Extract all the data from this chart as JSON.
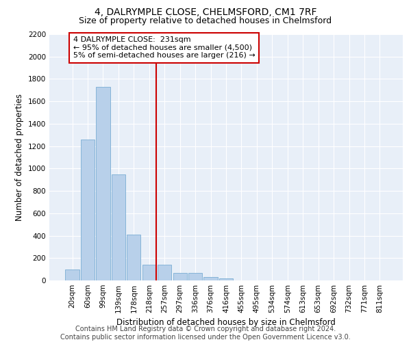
{
  "title": "4, DALRYMPLE CLOSE, CHELMSFORD, CM1 7RF",
  "subtitle": "Size of property relative to detached houses in Chelmsford",
  "xlabel": "Distribution of detached houses by size in Chelmsford",
  "ylabel": "Number of detached properties",
  "categories": [
    "20sqm",
    "60sqm",
    "99sqm",
    "139sqm",
    "178sqm",
    "218sqm",
    "257sqm",
    "297sqm",
    "336sqm",
    "376sqm",
    "416sqm",
    "455sqm",
    "495sqm",
    "534sqm",
    "574sqm",
    "613sqm",
    "653sqm",
    "692sqm",
    "732sqm",
    "771sqm",
    "811sqm"
  ],
  "values": [
    100,
    1260,
    1730,
    950,
    410,
    140,
    140,
    70,
    70,
    30,
    20,
    0,
    0,
    0,
    0,
    0,
    0,
    0,
    0,
    0,
    0
  ],
  "bar_color": "#b8d0ea",
  "bar_edge_color": "#7aadd4",
  "vline_x": 5.45,
  "vline_color": "#cc0000",
  "annotation_box_color": "#cc0000",
  "annotation_text_line1": "4 DALRYMPLE CLOSE:  231sqm",
  "annotation_text_line2": "← 95% of detached houses are smaller (4,500)",
  "annotation_text_line3": "5% of semi-detached houses are larger (216) →",
  "ylim": [
    0,
    2200
  ],
  "yticks": [
    0,
    200,
    400,
    600,
    800,
    1000,
    1200,
    1400,
    1600,
    1800,
    2000,
    2200
  ],
  "footer_line1": "Contains HM Land Registry data © Crown copyright and database right 2024.",
  "footer_line2": "Contains public sector information licensed under the Open Government Licence v3.0.",
  "bg_color": "#e8eff8",
  "grid_color": "#ffffff",
  "title_fontsize": 10,
  "subtitle_fontsize": 9,
  "axis_label_fontsize": 8.5,
  "tick_fontsize": 7.5,
  "footer_fontsize": 7,
  "annotation_fontsize": 8
}
